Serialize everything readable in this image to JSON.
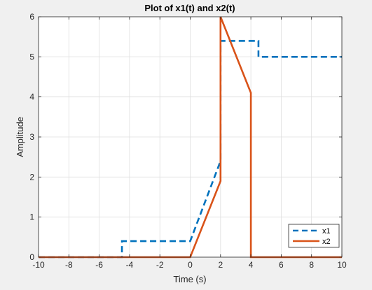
{
  "chart_data": {
    "type": "line",
    "title": "Plot of x1(t) and x2(t)",
    "xlabel": "Time (s)",
    "ylabel": "Amplitude",
    "xlim": [
      -10,
      10
    ],
    "ylim": [
      0,
      6
    ],
    "xticks": [
      -10,
      -8,
      -6,
      -4,
      -2,
      0,
      2,
      4,
      6,
      8,
      10
    ],
    "yticks": [
      0,
      1,
      2,
      3,
      4,
      5,
      6
    ],
    "grid": true,
    "legend": "bottom-right",
    "series": [
      {
        "name": "x1",
        "style": "dashed",
        "color": "#0072bd",
        "x": [
          -10,
          -4.5,
          -4.5,
          0,
          0,
          2,
          2,
          4.5,
          4.5,
          10
        ],
        "y": [
          0,
          0,
          0.4,
          0.4,
          0.4,
          2.4,
          5.4,
          5.4,
          5.0,
          5.0
        ]
      },
      {
        "name": "x2",
        "style": "solid",
        "color": "#d95319",
        "x": [
          -10,
          0,
          2,
          2,
          4,
          4,
          10
        ],
        "y": [
          0,
          0,
          1.9,
          6.0,
          4.1,
          0,
          0
        ]
      }
    ]
  }
}
